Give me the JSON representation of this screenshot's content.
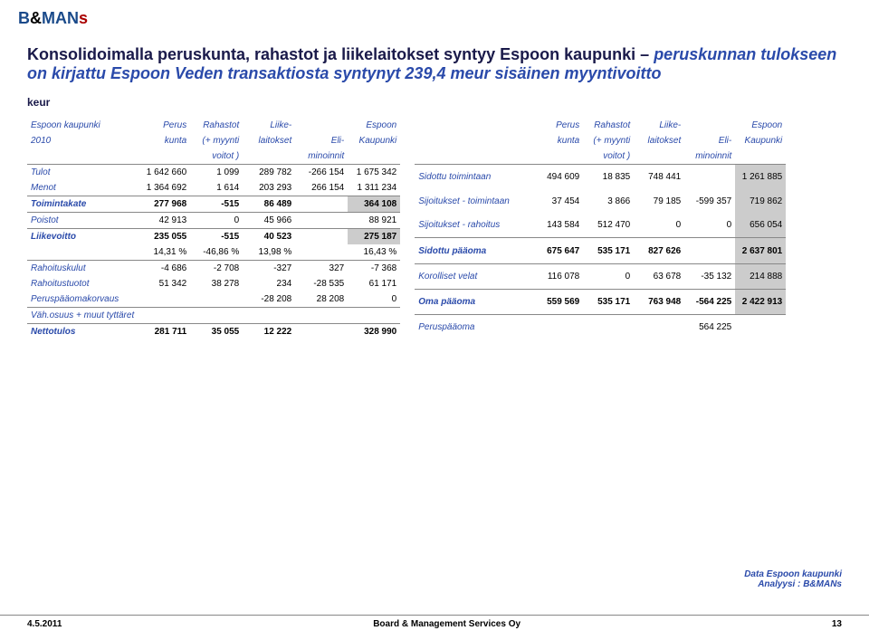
{
  "logo": {
    "b": "B",
    "amp": "&",
    "m": "MAN",
    "s": "s"
  },
  "title_a": "Konsolidoimalla peruskunta, rahastot ja liikelaitokset syntyy Espoon kaupunki – ",
  "title_b": "peruskunnan tulokseen on kirjattu Espoon Veden transaktiosta syntynyt 239,4 meur sisäinen myyntivoitto",
  "keur": "keur",
  "t1": {
    "h1": [
      "Espoon kaupunki",
      "Perus",
      "Rahastot",
      "Liike-",
      "",
      "Espoon"
    ],
    "h2": [
      "2010",
      "kunta",
      "(+ myynti",
      "laitokset",
      "Eli-",
      "Kaupunki"
    ],
    "h3": [
      "",
      "",
      "voitot )",
      "",
      "minoinnit",
      ""
    ],
    "rows": [
      {
        "c": [
          "Tulot",
          "1 642 660",
          "1 099",
          "289 782",
          "-266 154",
          "1 675 342"
        ],
        "sec": true
      },
      {
        "c": [
          "Menot",
          "1 364 692",
          "1 614",
          "203 293",
          "266 154",
          "1 311 234"
        ]
      },
      {
        "c": [
          "Toimintakate",
          "277 968",
          "-515",
          "86 489",
          "",
          "364 108"
        ],
        "sec": true,
        "bold": true,
        "shadeLast": true
      },
      {
        "c": [
          "Poistot",
          "42 913",
          "0",
          "45 966",
          "",
          "88 921"
        ],
        "sec": true
      },
      {
        "c": [
          "Liikevoitto",
          "235 055",
          "-515",
          "40 523",
          "",
          "275 187"
        ],
        "sec": true,
        "bold": true,
        "shadeLast": true
      },
      {
        "c": [
          "",
          "14,31 %",
          "-46,86 %",
          "13,98 %",
          "",
          "16,43 %"
        ]
      },
      {
        "c": [
          "Rahoituskulut",
          "-4 686",
          "-2 708",
          "-327",
          "327",
          "-7 368"
        ],
        "sec": true
      },
      {
        "c": [
          "Rahoitustuotot",
          "51 342",
          "38 278",
          "234",
          "-28 535",
          "61 171"
        ]
      },
      {
        "c": [
          "Peruspääomakorvaus",
          "",
          "",
          "-28 208",
          "28 208",
          "0"
        ]
      },
      {
        "c": [
          "Väh.osuus + muut tyttäret",
          "",
          "",
          "",
          "",
          ""
        ],
        "sec": true
      },
      {
        "c": [
          "Nettotulos",
          "281 711",
          "35 055",
          "12 222",
          "",
          "328 990"
        ],
        "sec": true,
        "bold": true
      }
    ]
  },
  "t2": {
    "h1": [
      "",
      "Perus",
      "Rahastot",
      "Liike-",
      "",
      "Espoon"
    ],
    "h2": [
      "",
      "kunta",
      "(+ myynti",
      "laitokset",
      "Eli-",
      "Kaupunki"
    ],
    "h3": [
      "",
      "",
      "voitot )",
      "",
      "minoinnit",
      ""
    ],
    "rows": [
      {
        "c": [
          "Sidottu toimintaan",
          "494 609",
          "18 835",
          "748 441",
          "",
          "1 261 885"
        ],
        "sec": true,
        "shadeLast": true
      },
      {
        "c": [
          "Sijoitukset - toimintaan",
          "37 454",
          "3 866",
          "79 185",
          "-599 357",
          "719 862"
        ],
        "shadeLast": true
      },
      {
        "c": [
          "Sijoitukset - rahoitus",
          "143 584",
          "512 470",
          "0",
          "0",
          "656 054"
        ],
        "shadeLast": true
      },
      {
        "c": [
          "Sidottu pääoma",
          "675 647",
          "535 171",
          "827 626",
          "",
          "2 637 801"
        ],
        "sec": true,
        "bold": true,
        "shadeLast": true
      },
      {
        "c": [
          "Korolliset velat",
          "116 078",
          "0",
          "63 678",
          "-35 132",
          "214 888"
        ],
        "sec": true,
        "shadeLast": true
      },
      {
        "c": [
          "Oma pääoma",
          "559 569",
          "535 171",
          "763 948",
          "-564 225",
          "2 422 913"
        ],
        "sec": true,
        "bold": true,
        "shadeLast": true
      },
      {
        "c": [
          "Peruspääoma",
          "",
          "",
          "",
          "564 225",
          ""
        ],
        "sec": true
      }
    ]
  },
  "credit1": "Data Espoon kaupunki",
  "credit2": "Analyysi : B&MANs",
  "footer": {
    "date": "4.5.2011",
    "org": "Board & Management Services Oy",
    "page": "13"
  }
}
